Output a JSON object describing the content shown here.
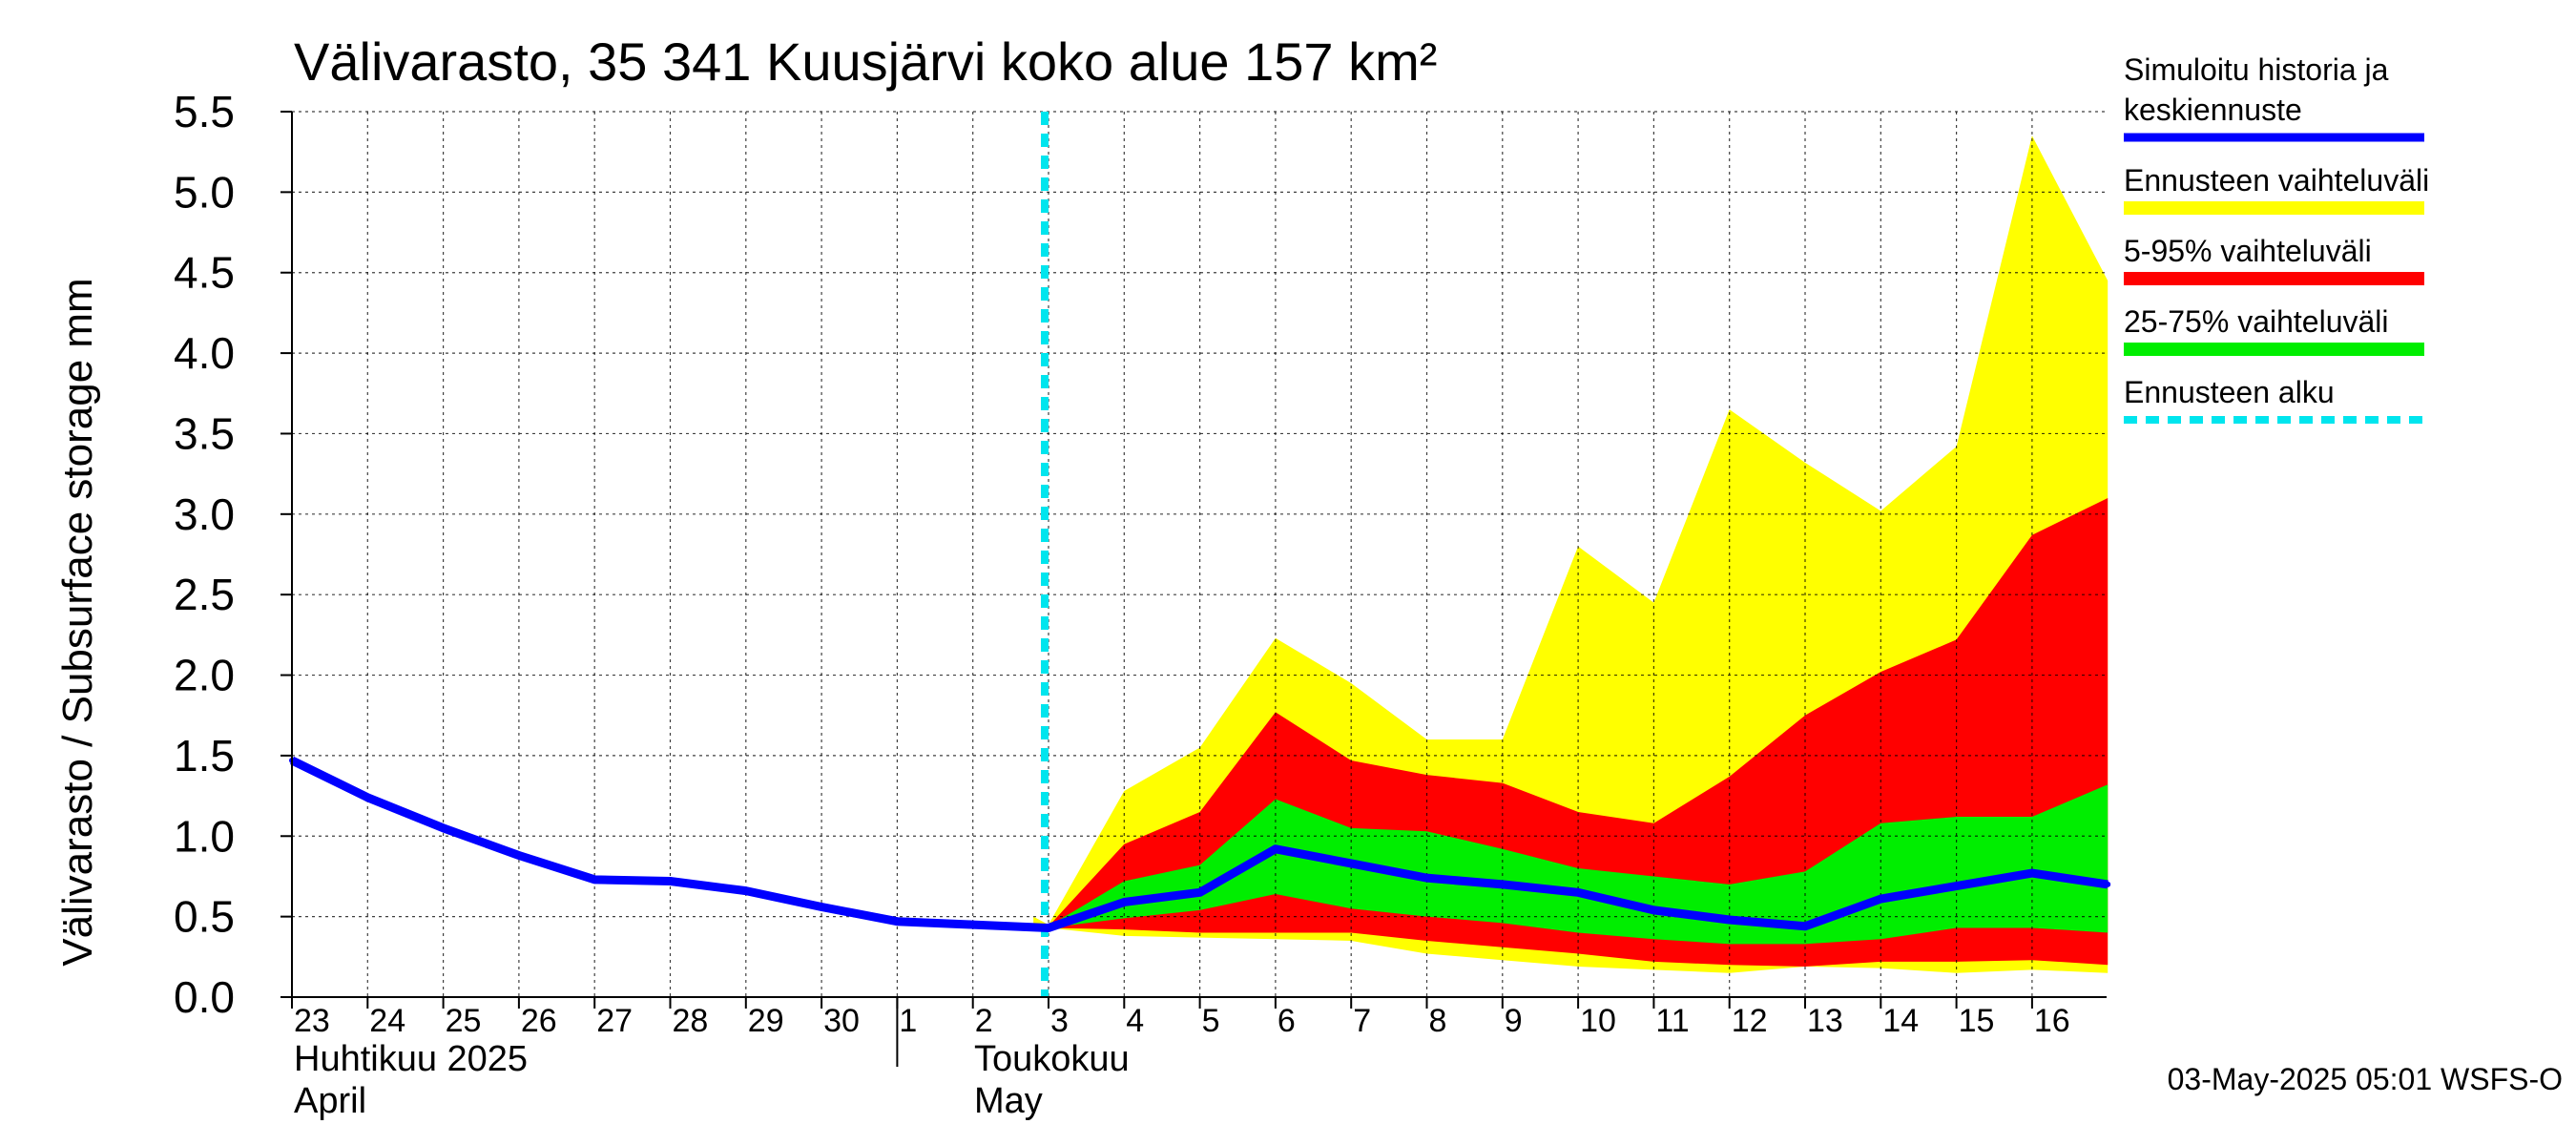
{
  "chart_data": {
    "type": "area",
    "title": "Välivarasto, 35 341 Kuusjärvi koko alue 157 km²",
    "ylabel": "Välivarasto / Subsurface storage  mm",
    "ylim": [
      0,
      5.5
    ],
    "y_ticks": [
      "0.0",
      "0.5",
      "1.0",
      "1.5",
      "2.0",
      "2.5",
      "3.0",
      "3.5",
      "4.0",
      "4.5",
      "5.0",
      "5.5"
    ],
    "x_tick_labels": [
      "23",
      "24",
      "25",
      "26",
      "27",
      "28",
      "29",
      "30",
      "1",
      "2",
      "3",
      "4",
      "5",
      "6",
      "7",
      "8",
      "9",
      "10",
      "11",
      "12",
      "13",
      "14",
      "15",
      "16"
    ],
    "month_labels": [
      {
        "fi": "Huhtikuu  2025",
        "en": "April"
      },
      {
        "fi": "Toukokuu",
        "en": "May"
      }
    ],
    "grid": true,
    "legend_position": "right",
    "forecast_start_day": 10.0,
    "series": [
      {
        "name": "Ennusteen vaihteluväli",
        "color": "#ffff00",
        "x": [
          9.8,
          10,
          11,
          12,
          13,
          14,
          15,
          16,
          17,
          18,
          19,
          20,
          21,
          22,
          23,
          24
        ],
        "upper": [
          0.5,
          0.45,
          1.28,
          1.55,
          2.23,
          1.95,
          1.6,
          1.6,
          2.8,
          2.45,
          3.65,
          3.32,
          3.02,
          3.42,
          5.35,
          4.45
        ],
        "lower": [
          0.45,
          0.43,
          0.38,
          0.37,
          0.36,
          0.35,
          0.27,
          0.23,
          0.19,
          0.17,
          0.15,
          0.19,
          0.18,
          0.15,
          0.17,
          0.15
        ]
      },
      {
        "name": "5-95% vaihteluväli",
        "color": "#ff0000",
        "x": [
          10,
          11,
          12,
          13,
          14,
          15,
          16,
          17,
          18,
          19,
          20,
          21,
          22,
          23,
          24
        ],
        "upper": [
          0.44,
          0.95,
          1.15,
          1.77,
          1.47,
          1.38,
          1.33,
          1.15,
          1.08,
          1.37,
          1.75,
          2.02,
          2.22,
          2.87,
          3.1
        ],
        "lower": [
          0.43,
          0.42,
          0.4,
          0.4,
          0.4,
          0.35,
          0.31,
          0.27,
          0.22,
          0.2,
          0.19,
          0.22,
          0.22,
          0.23,
          0.2
        ]
      },
      {
        "name": "25-75% vaihteluväli",
        "color": "#00ee00",
        "x": [
          10,
          11,
          12,
          13,
          14,
          15,
          16,
          17,
          18,
          19,
          20,
          21,
          22,
          23,
          24
        ],
        "upper": [
          0.44,
          0.72,
          0.82,
          1.23,
          1.05,
          1.03,
          0.92,
          0.8,
          0.75,
          0.7,
          0.78,
          1.08,
          1.12,
          1.12,
          1.32
        ],
        "lower": [
          0.43,
          0.49,
          0.54,
          0.64,
          0.55,
          0.5,
          0.46,
          0.4,
          0.36,
          0.33,
          0.33,
          0.36,
          0.43,
          0.43,
          0.4
        ]
      },
      {
        "name": "Simuloitu historia ja keskiennuste",
        "legend_lines": [
          "Simuloitu historia ja",
          "keskiennuste"
        ],
        "color": "#0000ff",
        "x": [
          0,
          1,
          2,
          3,
          4,
          5,
          6,
          7,
          8,
          9,
          10,
          11,
          12,
          13,
          14,
          15,
          16,
          17,
          18,
          19,
          20,
          21,
          22,
          23,
          24
        ],
        "values": [
          1.47,
          1.24,
          1.05,
          0.88,
          0.73,
          0.72,
          0.66,
          0.56,
          0.47,
          0.45,
          0.43,
          0.59,
          0.65,
          0.92,
          0.83,
          0.74,
          0.7,
          0.65,
          0.54,
          0.48,
          0.44,
          0.61,
          0.69,
          0.77,
          0.7
        ]
      },
      {
        "name": "Ennusteen alku",
        "color": "#00e5ee",
        "style": "dashed"
      }
    ]
  },
  "footer": {
    "timestamp": "03-May-2025 05:01 WSFS-O"
  }
}
